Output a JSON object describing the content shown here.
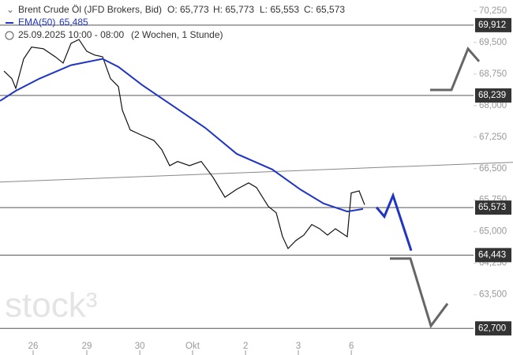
{
  "chart_data": {
    "type": "line",
    "title": "Brent Crude Öl (JFD Brokers, Bid)",
    "ohlc": [
      "O: 65,773",
      "H: 65,773",
      "L: 65,553",
      "C: 65,573"
    ],
    "indicator_label": "EMA(50)",
    "indicator_value": "65,485",
    "period": "25.09.2025 10:00 - 08:00",
    "period_note": "(2 Wochen, 1 Stunde)",
    "watermark": "stock³",
    "xlim": [
      0,
      227.5
    ],
    "ylim": [
      62.48,
      70.51
    ],
    "xticks": [
      {
        "value": 14.7,
        "label": "26"
      },
      {
        "value": 38.5,
        "label": "29"
      },
      {
        "value": 62,
        "label": "30"
      },
      {
        "value": 85.4,
        "label": "Okt"
      },
      {
        "value": 108.9,
        "label": "2"
      },
      {
        "value": 132.3,
        "label": "3"
      },
      {
        "value": 155.8,
        "label": "6"
      }
    ],
    "yticks": [
      {
        "value": 70.25,
        "label": "70,250"
      },
      {
        "value": 69.5,
        "label": "69,500"
      },
      {
        "value": 68.75,
        "label": "68,750"
      },
      {
        "value": 68,
        "label": "68,000"
      },
      {
        "value": 67.25,
        "label": "67,250"
      },
      {
        "value": 66.5,
        "label": "66,500"
      },
      {
        "value": 65.75,
        "label": "65,750"
      },
      {
        "value": 65,
        "label": "65,000"
      },
      {
        "value": 64.25,
        "label": "64,250"
      },
      {
        "value": 63.5,
        "label": "63,500"
      }
    ],
    "levels": [
      {
        "value": 69.912,
        "label": "69,912"
      },
      {
        "value": 68.239,
        "label": "68,239"
      },
      {
        "value": 65.573,
        "label": "65,573"
      },
      {
        "value": 64.443,
        "label": "64,443"
      },
      {
        "value": 62.7,
        "label": "62,700"
      }
    ],
    "series": [
      {
        "name": "Brent Crude Öl",
        "color": "#111111",
        "x": [
          1.75,
          5.25,
          7,
          10.5,
          14,
          19.25,
          24.5,
          28,
          31.5,
          35,
          38.5,
          42,
          45.5,
          49,
          52.5,
          54.25,
          57.75,
          63,
          68.25,
          71.75,
          75.25,
          78.75,
          84,
          89.25,
          94.5,
          99.75,
          105,
          110.25,
          113.75,
          119,
          122.5,
          125.3,
          127.75,
          131.25,
          134.75,
          138.25,
          141.75,
          145.25,
          148.75,
          154,
          155.75,
          159.25,
          161.7
        ],
        "values": [
          68.82,
          68.64,
          68.41,
          69.11,
          69.39,
          69.35,
          69.16,
          69.01,
          69.48,
          69.57,
          69.29,
          69.2,
          69.16,
          68.64,
          68.45,
          67.89,
          67.42,
          67.29,
          67.17,
          66.95,
          66.57,
          66.67,
          66.57,
          66.67,
          66.29,
          65.82,
          66.01,
          66.16,
          66.05,
          65.6,
          65.45,
          64.88,
          64.6,
          64.79,
          64.92,
          65.17,
          65.07,
          64.92,
          65.07,
          64.88,
          65.92,
          65.97,
          65.64
        ]
      },
      {
        "name": "EMA(50)",
        "color": "#1f35c4",
        "x": [
          0,
          7,
          17.5,
          31.5,
          45.5,
          52.5,
          63,
          77,
          91,
          105,
          120.75,
          133,
          143.5,
          154,
          161
        ],
        "values": [
          68.11,
          68.35,
          68.64,
          68.96,
          69.11,
          68.92,
          68.49,
          67.98,
          67.47,
          66.85,
          66.48,
          66.01,
          65.67,
          65.48,
          65.54
        ]
      }
    ],
    "trendline": {
      "x": [
        0,
        227.5
      ],
      "values": [
        66.18,
        66.65
      ],
      "color": "#888888"
    },
    "projections": [
      {
        "color": "#1f35c4",
        "x": [
          166.95,
          170.45,
          174.3,
          182.35
        ],
        "values": [
          65.58,
          65.36,
          65.86,
          64.55
        ]
      },
      {
        "color": "#666666",
        "x": [
          190.75,
          200.2,
          207.55,
          212.45
        ],
        "values": [
          68.37,
          68.37,
          69.35,
          69.05
        ]
      },
      {
        "color": "#666666",
        "x": [
          172.9,
          182,
          191.1,
          198.45
        ],
        "values": [
          64.36,
          64.36,
          62.76,
          63.29
        ]
      }
    ]
  }
}
